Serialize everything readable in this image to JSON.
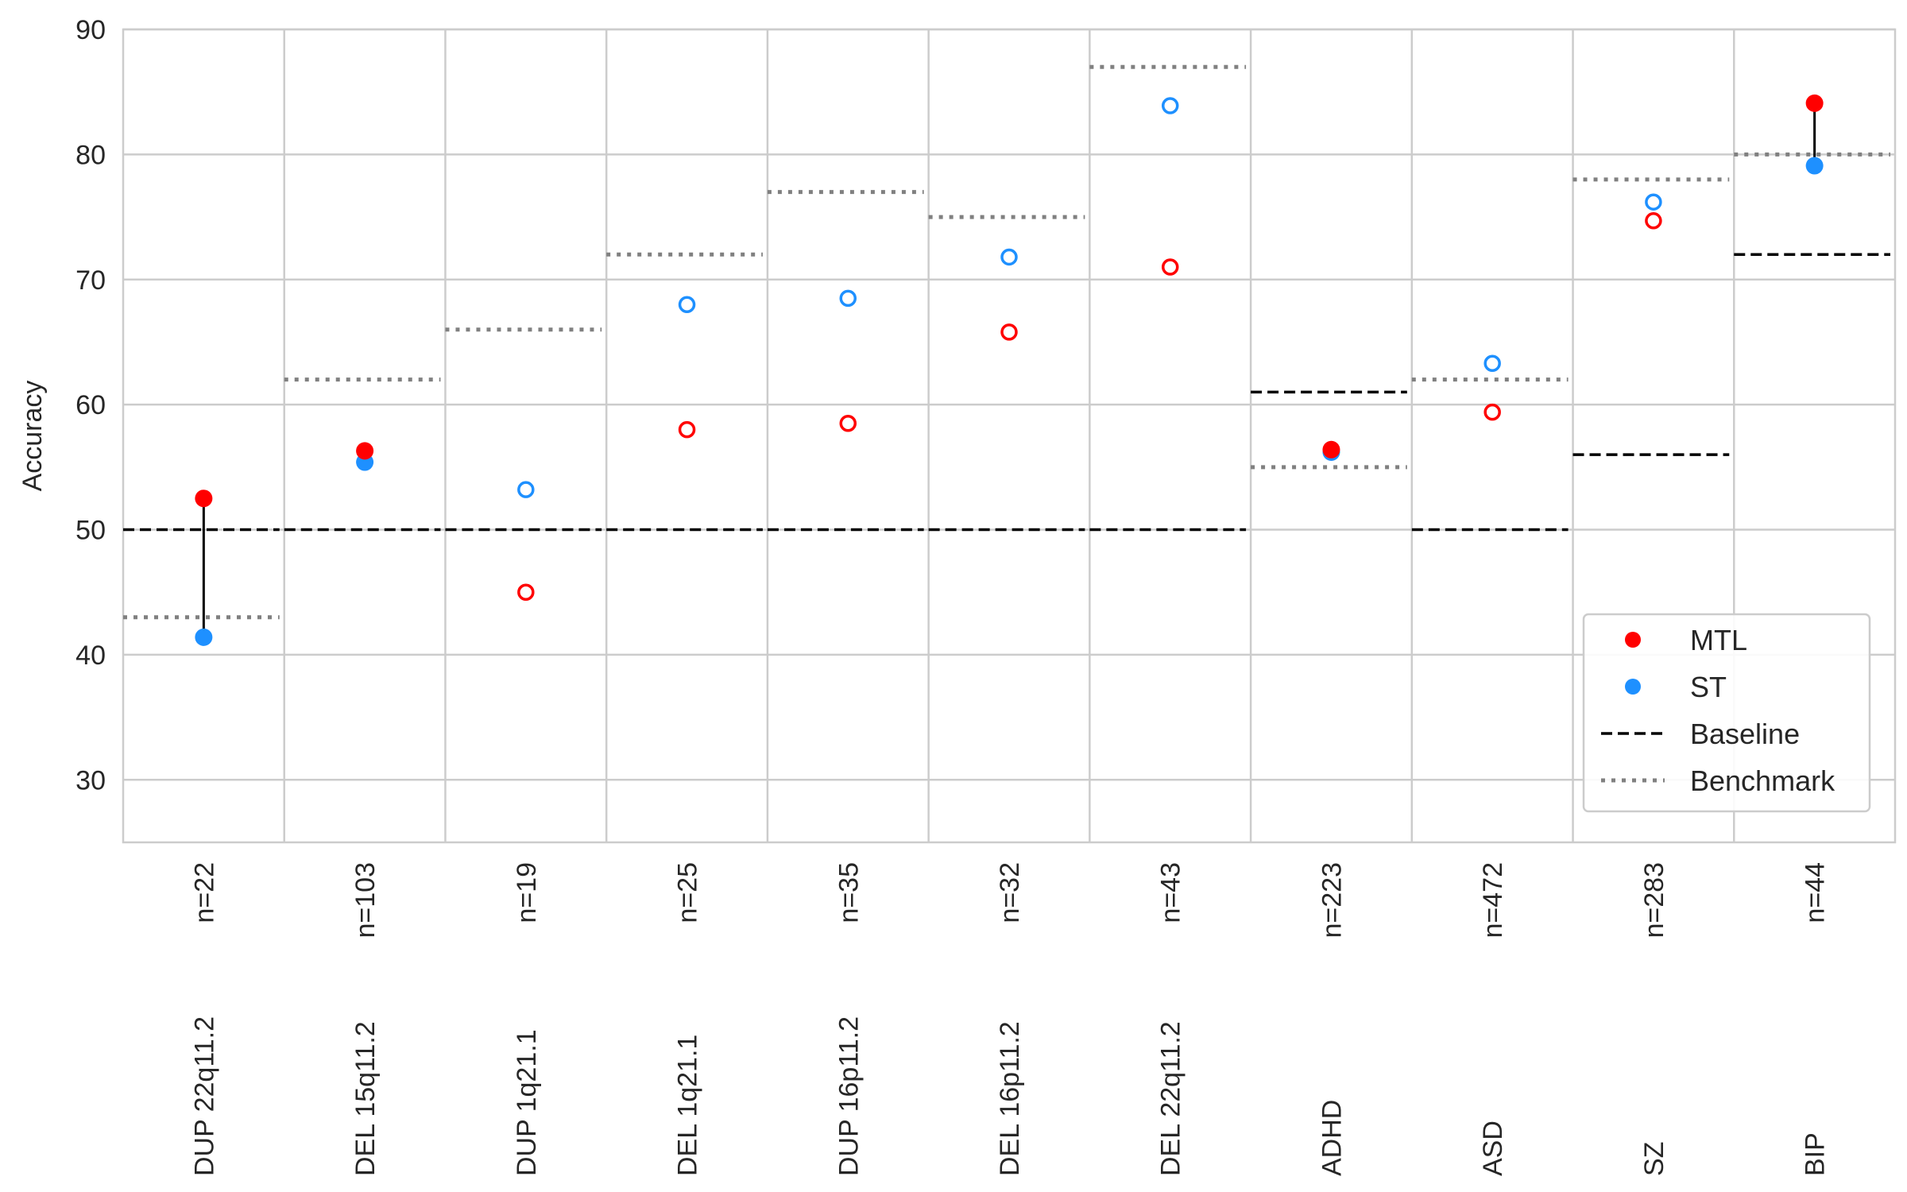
{
  "chart_data": {
    "type": "scatter",
    "ylabel": "Accuracy",
    "xlabel": "",
    "ylim": [
      25,
      90
    ],
    "yticks": [
      30,
      40,
      50,
      60,
      70,
      80,
      90
    ],
    "grid": true,
    "legend_position": "bottom-right",
    "categories": [
      {
        "name": "DUP 22q11.2",
        "n": "n=22",
        "mtl": 52.5,
        "st": 41.4,
        "baseline": 50,
        "benchmark": 43,
        "mtl_filled": true,
        "st_filled": true
      },
      {
        "name": "DEL 15q11.2",
        "n": "n=103",
        "mtl": 56.3,
        "st": 55.4,
        "baseline": 50,
        "benchmark": 62,
        "mtl_filled": true,
        "st_filled": true
      },
      {
        "name": "DUP 1q21.1",
        "n": "n=19",
        "mtl": 45.0,
        "st": 53.2,
        "baseline": 50,
        "benchmark": 66,
        "mtl_filled": false,
        "st_filled": false
      },
      {
        "name": "DEL 1q21.1",
        "n": "n=25",
        "mtl": 58.0,
        "st": 68.0,
        "baseline": 50,
        "benchmark": 72,
        "mtl_filled": false,
        "st_filled": false
      },
      {
        "name": "DUP 16p11.2",
        "n": "n=35",
        "mtl": 58.5,
        "st": 68.5,
        "baseline": 50,
        "benchmark": 77,
        "mtl_filled": false,
        "st_filled": false
      },
      {
        "name": "DEL 16p11.2",
        "n": "n=32",
        "mtl": 65.8,
        "st": 71.8,
        "baseline": 50,
        "benchmark": 75,
        "mtl_filled": false,
        "st_filled": false
      },
      {
        "name": "DEL 22q11.2",
        "n": "n=43",
        "mtl": 71.0,
        "st": 83.9,
        "baseline": 50,
        "benchmark": 87,
        "mtl_filled": false,
        "st_filled": false
      },
      {
        "name": "ADHD",
        "n": "n=223",
        "mtl": 56.4,
        "st": 56.2,
        "baseline": 61,
        "benchmark": 55,
        "mtl_filled": true,
        "st_filled": true
      },
      {
        "name": "ASD",
        "n": "n=472",
        "mtl": 59.4,
        "st": 63.3,
        "baseline": 50,
        "benchmark": 62,
        "mtl_filled": false,
        "st_filled": false
      },
      {
        "name": "SZ",
        "n": "n=283",
        "mtl": 74.7,
        "st": 76.2,
        "baseline": 56,
        "benchmark": 78,
        "mtl_filled": false,
        "st_filled": false
      },
      {
        "name": "BIP",
        "n": "n=44",
        "mtl": 84.1,
        "st": 79.1,
        "baseline": 72,
        "benchmark": 80,
        "mtl_filled": true,
        "st_filled": true
      }
    ],
    "connectors": [
      "DUP 22q11.2",
      "BIP"
    ],
    "legend": [
      {
        "label": "MTL",
        "kind": "dot",
        "color": "#ff0000"
      },
      {
        "label": "ST",
        "kind": "dot",
        "color": "#1e90ff"
      },
      {
        "label": "Baseline",
        "kind": "dashed",
        "color": "#000000"
      },
      {
        "label": "Benchmark",
        "kind": "dotted",
        "color": "#808080"
      }
    ],
    "colors": {
      "mtl": "#ff0000",
      "st": "#1e90ff",
      "baseline": "#000000",
      "benchmark": "#808080",
      "grid": "#cccccc"
    }
  }
}
